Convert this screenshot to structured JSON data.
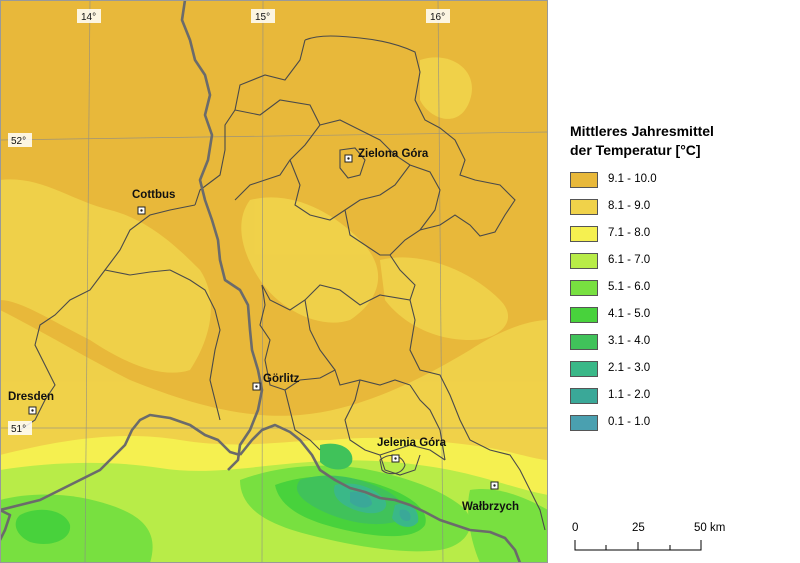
{
  "map": {
    "graticule_labels": {
      "lon": [
        "14°",
        "15°",
        "16°"
      ],
      "lat": [
        "52°",
        "51°"
      ]
    },
    "cities": [
      {
        "name": "Zielona Góra"
      },
      {
        "name": "Cottbus"
      },
      {
        "name": "Görlitz"
      },
      {
        "name": "Dresden"
      },
      {
        "name": "Jelenia Góra"
      },
      {
        "name": "Wałbrzych"
      }
    ],
    "colors": {
      "lowland": "#e8b83a",
      "border": "#6b6b6b",
      "region_outline": "#4a4a4a"
    }
  },
  "legend": {
    "title_line1": "Mittleres Jahresmittel",
    "title_line2": "der Temperatur [°C]",
    "classes": [
      {
        "label": "9.1 - 10.0",
        "color": "#e8b83a"
      },
      {
        "label": "8.1 - 9.0",
        "color": "#f0d24a"
      },
      {
        "label": "7.1 - 8.0",
        "color": "#f5f050"
      },
      {
        "label": "6.1 - 7.0",
        "color": "#b8ec48"
      },
      {
        "label": "5.1 - 6.0",
        "color": "#78e040"
      },
      {
        "label": "4.1 - 5.0",
        "color": "#48d23c"
      },
      {
        "label": "3.1 - 4.0",
        "color": "#40c25a"
      },
      {
        "label": "2.1 - 3.0",
        "color": "#3ab888"
      },
      {
        "label": "1.1 - 2.0",
        "color": "#3aa898"
      },
      {
        "label": "0.1 - 1.0",
        "color": "#4aa0b0"
      }
    ]
  },
  "scale_bar": {
    "labels": [
      "0",
      "25",
      "50 km"
    ]
  }
}
